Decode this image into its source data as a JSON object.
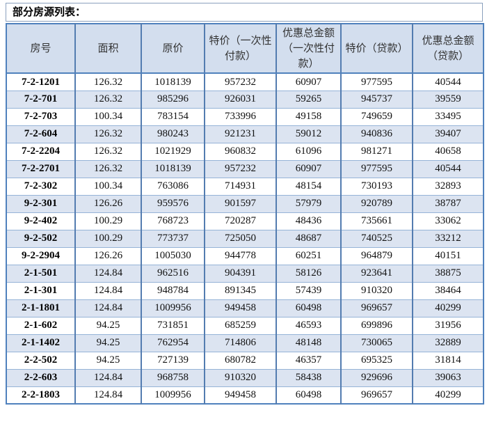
{
  "title": "部分房源列表：",
  "colors": {
    "outer_border": "#4f81bd",
    "inner_vertical_border": "#537cb0",
    "row_border": "#95b3d7",
    "header_bg": "#d3deee",
    "alt_row_bg": "#dce4f1",
    "row_bg": "#ffffff"
  },
  "table": {
    "headers": [
      "房号",
      "面积",
      "原价",
      "特价（一次性付款）",
      "优惠总金额（一次性付款）",
      "特价（贷款）",
      "优惠总金额（贷款）"
    ],
    "rows": [
      [
        "7-2-1201",
        "126.32",
        "1018139",
        "957232",
        "60907",
        "977595",
        "40544"
      ],
      [
        "7-2-701",
        "126.32",
        "985296",
        "926031",
        "59265",
        "945737",
        "39559"
      ],
      [
        "7-2-703",
        "100.34",
        "783154",
        "733996",
        "49158",
        "749659",
        "33495"
      ],
      [
        "7-2-604",
        "126.32",
        "980243",
        "921231",
        "59012",
        "940836",
        "39407"
      ],
      [
        "7-2-2204",
        "126.32",
        "1021929",
        "960832",
        "61096",
        "981271",
        "40658"
      ],
      [
        "7-2-2701",
        "126.32",
        "1018139",
        "957232",
        "60907",
        "977595",
        "40544"
      ],
      [
        "7-2-302",
        "100.34",
        "763086",
        "714931",
        "48154",
        "730193",
        "32893"
      ],
      [
        "9-2-301",
        "126.26",
        "959576",
        "901597",
        "57979",
        "920789",
        "38787"
      ],
      [
        "9-2-402",
        "100.29",
        "768723",
        "720287",
        "48436",
        "735661",
        "33062"
      ],
      [
        "9-2-502",
        "100.29",
        "773737",
        "725050",
        "48687",
        "740525",
        "33212"
      ],
      [
        "9-2-2904",
        "126.26",
        "1005030",
        "944778",
        "60251",
        "964879",
        "40151"
      ],
      [
        "2-1-501",
        "124.84",
        "962516",
        "904391",
        "58126",
        "923641",
        "38875"
      ],
      [
        "2-1-301",
        "124.84",
        "948784",
        "891345",
        "57439",
        "910320",
        "38464"
      ],
      [
        "2-1-1801",
        "124.84",
        "1009956",
        "949458",
        "60498",
        "969657",
        "40299"
      ],
      [
        "2-1-602",
        "94.25",
        "731851",
        "685259",
        "46593",
        "699896",
        "31956"
      ],
      [
        "2-1-1402",
        "94.25",
        "762954",
        "714806",
        "48148",
        "730065",
        "32889"
      ],
      [
        "2-2-502",
        "94.25",
        "727139",
        "680782",
        "46357",
        "695325",
        "31814"
      ],
      [
        "2-2-603",
        "124.84",
        "968758",
        "910320",
        "58438",
        "929696",
        "39063"
      ],
      [
        "2-2-1803",
        "124.84",
        "1009956",
        "949458",
        "60498",
        "969657",
        "40299"
      ]
    ]
  }
}
